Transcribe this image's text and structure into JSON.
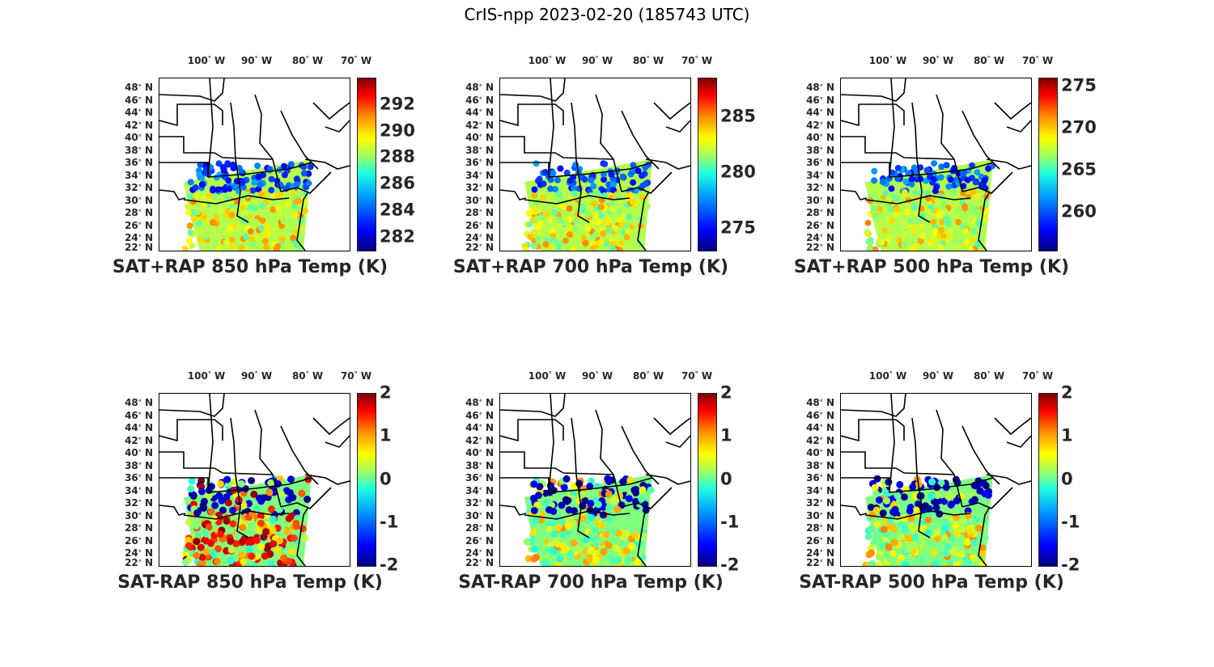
{
  "title": "CrIS-npp 2023-02-20 (185743 UTC)",
  "lat_labels": [
    "48",
    "46",
    "44",
    "42",
    "40",
    "38",
    "36",
    "34",
    "32",
    "30",
    "28",
    "26",
    "24",
    "22"
  ],
  "lat_suffix": "N",
  "lon_labels": [
    "100",
    "90",
    "80",
    "70"
  ],
  "lon_suffix": "W",
  "degree_symbol": "°",
  "colormap": "jet",
  "panels": [
    {
      "caption": "SAT+RAP 850 hPa Temp (K)",
      "colorbar_ticks": [
        "292",
        "290",
        "288",
        "286",
        "284",
        "282"
      ],
      "colorbar_range": [
        281,
        294
      ]
    },
    {
      "caption": "SAT+RAP 700 hPa Temp (K)",
      "colorbar_ticks": [
        "285",
        "280",
        "275"
      ],
      "colorbar_range": [
        273,
        288.5
      ]
    },
    {
      "caption": "SAT+RAP 500 hPa Temp (K)",
      "colorbar_ticks": [
        "275",
        "270",
        "265",
        "260"
      ],
      "colorbar_range": [
        255.5,
        276
      ]
    },
    {
      "caption": "SAT-RAP 850 hPa Temp (K)",
      "colorbar_ticks": [
        "2",
        "1",
        "0",
        "-1",
        "-2"
      ],
      "colorbar_range": [
        -2,
        2
      ]
    },
    {
      "caption": "SAT-RAP 700 hPa Temp (K)",
      "colorbar_ticks": [
        "2",
        "1",
        "0",
        "-1",
        "-2"
      ],
      "colorbar_range": [
        -2,
        2
      ]
    },
    {
      "caption": "SAT-RAP 500 hPa Temp (K)",
      "colorbar_ticks": [
        "2",
        "1",
        "0",
        "-1",
        "-2"
      ],
      "colorbar_range": [
        -2,
        2
      ]
    }
  ]
}
